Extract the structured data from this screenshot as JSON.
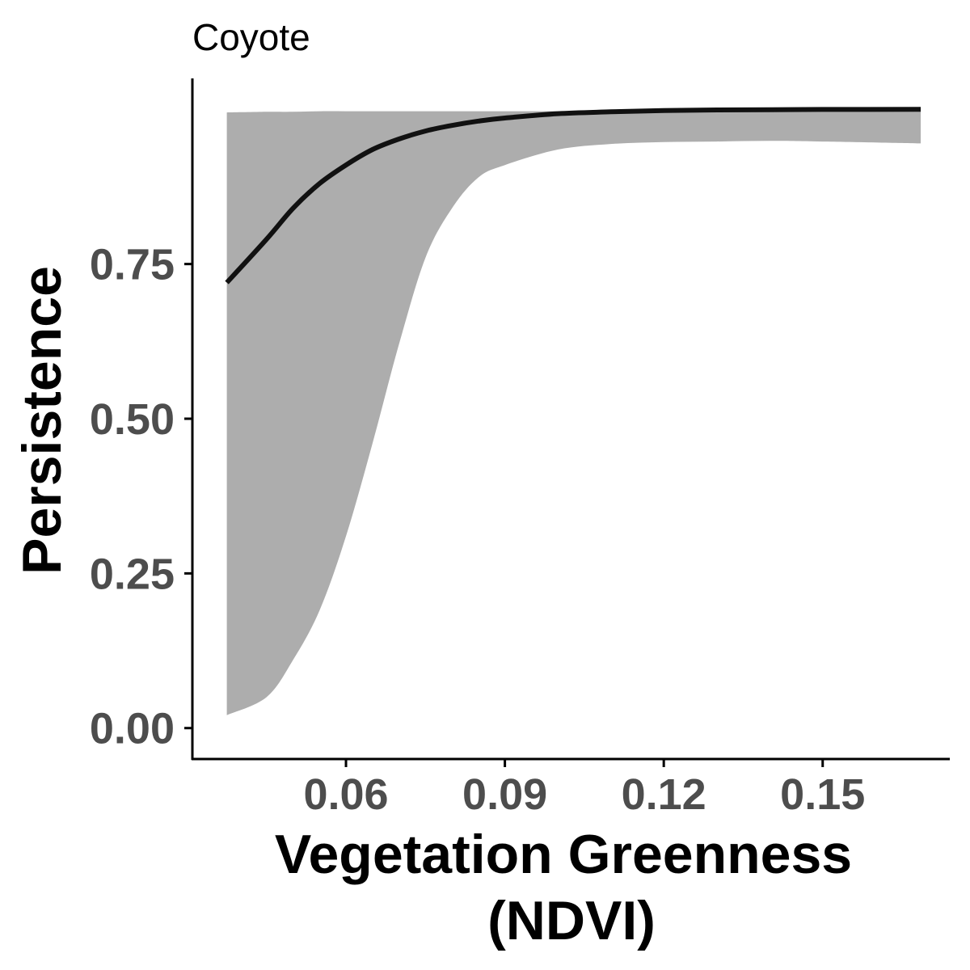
{
  "chart_data": {
    "type": "line",
    "title": "Coyote",
    "xlabel_lines": [
      "Vegetation Greenness",
      "(NDVI)"
    ],
    "ylabel": "Persistence",
    "xlim": [
      0.031,
      0.174
    ],
    "ylim": [
      -0.05,
      1.05
    ],
    "x_ticks": [
      0.06,
      0.09,
      0.12,
      0.15
    ],
    "x_tick_labels": [
      "0.06",
      "0.09",
      "0.12",
      "0.15"
    ],
    "y_ticks": [
      0.0,
      0.25,
      0.5,
      0.75
    ],
    "y_tick_labels": [
      "0.00",
      "0.25",
      "0.50",
      "0.75"
    ],
    "grid": false,
    "colors": {
      "line": "#111111",
      "ribbon": "#adadad",
      "axis": "#000000",
      "tick_label": "#4d4d4d"
    },
    "series": [
      {
        "x": [
          0.0375,
          0.045,
          0.05,
          0.055,
          0.06,
          0.065,
          0.07,
          0.075,
          0.08,
          0.085,
          0.09,
          0.1,
          0.11,
          0.12,
          0.13,
          0.14,
          0.15,
          0.1685
        ],
        "y": [
          0.72,
          0.79,
          0.84,
          0.88,
          0.91,
          0.935,
          0.952,
          0.965,
          0.974,
          0.981,
          0.986,
          0.993,
          0.996,
          0.998,
          0.999,
          0.9995,
          0.9998,
          1.0
        ],
        "lower": [
          0.021,
          0.05,
          0.11,
          0.19,
          0.31,
          0.46,
          0.62,
          0.76,
          0.84,
          0.89,
          0.91,
          0.935,
          0.944,
          0.947,
          0.948,
          0.949,
          0.948,
          0.945
        ],
        "upper": [
          0.995,
          0.996,
          0.996,
          0.997,
          0.997,
          0.997,
          0.997,
          0.997,
          0.997,
          0.997,
          0.997,
          0.997,
          0.997,
          0.997,
          0.997,
          0.997,
          0.997,
          0.997
        ]
      }
    ]
  }
}
